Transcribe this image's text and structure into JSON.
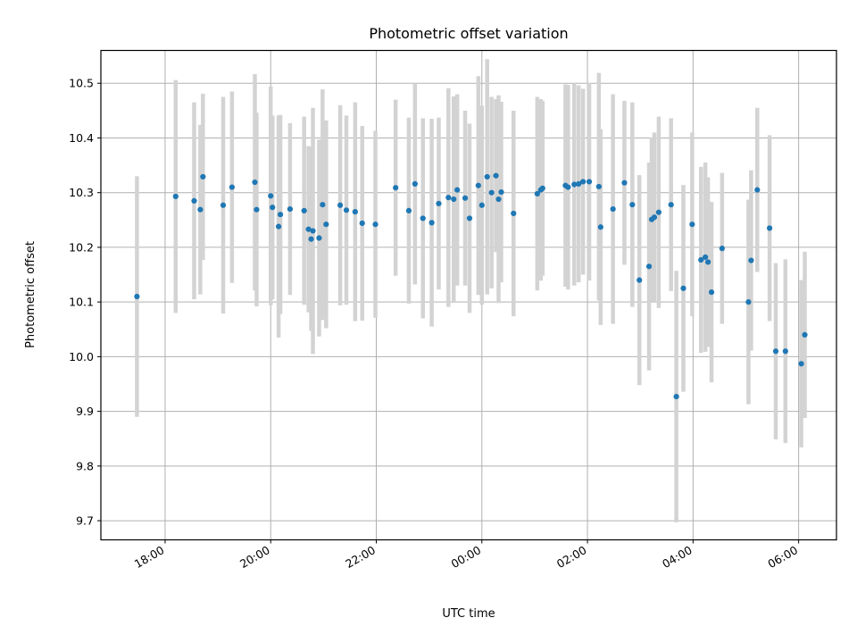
{
  "chart_data": {
    "type": "scatter",
    "title": "Photometric offset variation",
    "xlabel": "UTC time",
    "ylabel": "Photometric offset",
    "x_ticks": [
      "18:00",
      "20:00",
      "22:00",
      "00:00",
      "02:00",
      "04:00",
      "06:00"
    ],
    "x_range": [
      "16:47",
      "06:43"
    ],
    "ylim": [
      9.665,
      10.56
    ],
    "y_ticks": [
      9.7,
      9.8,
      9.9,
      10.0,
      10.1,
      10.2,
      10.3,
      10.4,
      10.5
    ],
    "grid": true,
    "point_color": "#1f77b4",
    "errorbar_color": "#d3d3d3",
    "series": [
      {
        "time": [
          "17:28",
          "18:12",
          "18:33",
          "18:40",
          "18:43",
          "19:06",
          "19:16",
          "19:42",
          "19:44",
          "20:00",
          "20:02",
          "20:09",
          "20:11",
          "20:22",
          "20:38",
          "20:43",
          "20:46",
          "20:48",
          "20:55",
          "20:59",
          "21:03",
          "21:19",
          "21:26",
          "21:36",
          "21:44",
          "21:59",
          "22:22",
          "22:37",
          "22:44",
          "22:53",
          "23:03",
          "23:11",
          "23:22",
          "23:28",
          "23:32",
          "23:41",
          "23:46",
          "23:56",
          "24:00",
          "24:06",
          "24:11",
          "24:16",
          "24:19",
          "24:22",
          "24:36",
          "25:03",
          "25:07",
          "25:09",
          "25:35",
          "25:38",
          "25:45",
          "25:50",
          "25:55",
          "26:02",
          "26:13",
          "26:15",
          "26:29",
          "26:42",
          "26:51",
          "26:59",
          "27:10",
          "27:13",
          "27:16",
          "27:21",
          "27:35",
          "27:41",
          "27:49",
          "27:59",
          "28:09",
          "28:14",
          "28:17",
          "28:21",
          "28:33",
          "29:03",
          "29:06",
          "29:13",
          "29:27",
          "29:34",
          "29:45",
          "30:03",
          "30:07"
        ],
        "y": [
          10.11,
          10.293,
          10.285,
          10.269,
          10.329,
          10.277,
          10.31,
          10.319,
          10.269,
          10.294,
          10.273,
          10.238,
          10.26,
          10.27,
          10.267,
          10.233,
          10.215,
          10.23,
          10.217,
          10.278,
          10.242,
          10.277,
          10.268,
          10.265,
          10.244,
          10.242,
          10.309,
          10.267,
          10.316,
          10.253,
          10.245,
          10.28,
          10.291,
          10.288,
          10.305,
          10.29,
          10.253,
          10.313,
          10.277,
          10.329,
          10.3,
          10.331,
          10.288,
          10.301,
          10.262,
          10.298,
          10.305,
          10.308,
          10.313,
          10.31,
          10.315,
          10.316,
          10.32,
          10.32,
          10.311,
          10.237,
          10.27,
          10.318,
          10.278,
          10.14,
          10.165,
          10.251,
          10.255,
          10.264,
          10.278,
          9.927,
          10.125,
          10.242,
          10.177,
          10.182,
          10.173,
          10.118,
          10.198,
          10.1,
          10.176,
          10.305,
          10.235,
          10.01,
          10.01,
          9.987,
          10.04
        ],
        "err": [
          0.22,
          0.213,
          0.18,
          0.155,
          0.152,
          0.198,
          0.175,
          0.198,
          0.177,
          0.2,
          0.168,
          0.203,
          0.182,
          0.157,
          0.172,
          0.152,
          0.168,
          0.225,
          0.18,
          0.211,
          0.19,
          0.183,
          0.173,
          0.2,
          0.178,
          0.171,
          0.161,
          0.17,
          0.184,
          0.183,
          0.19,
          0.157,
          0.2,
          0.188,
          0.175,
          0.16,
          0.173,
          0.2,
          0.182,
          0.215,
          0.175,
          0.14,
          0.19,
          0.165,
          0.188,
          0.177,
          0.166,
          0.16,
          0.185,
          0.187,
          0.185,
          0.18,
          0.17,
          0.181,
          0.208,
          0.179,
          0.21,
          0.15,
          0.187,
          0.192,
          0.19,
          0.15,
          0.155,
          0.175,
          0.158,
          0.23,
          0.189,
          0.168,
          0.17,
          0.173,
          0.155,
          0.165,
          0.138,
          0.187,
          0.165,
          0.15,
          0.17,
          0.161,
          0.168,
          0.153,
          0.152
        ]
      }
    ]
  }
}
